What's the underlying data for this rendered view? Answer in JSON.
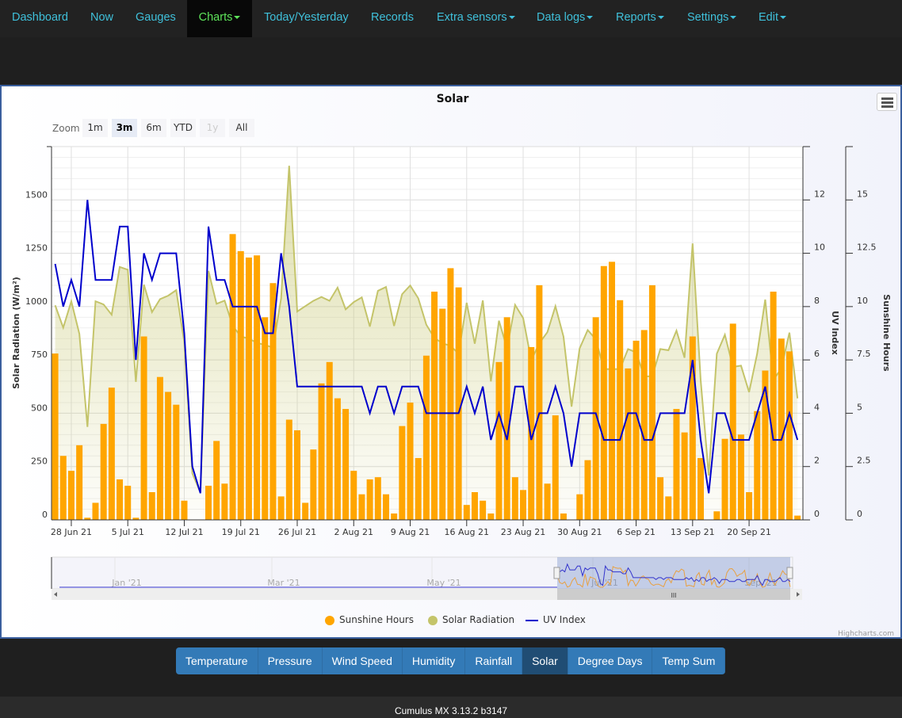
{
  "nav": {
    "items": [
      {
        "label": "Dashboard",
        "dropdown": false
      },
      {
        "label": "Now",
        "dropdown": false
      },
      {
        "label": "Gauges",
        "dropdown": false
      },
      {
        "label": "Charts",
        "dropdown": true,
        "active": true
      },
      {
        "label": "Today/Yesterday",
        "dropdown": false
      },
      {
        "label": "Records",
        "dropdown": false
      },
      {
        "label": "Extra sensors",
        "dropdown": true
      },
      {
        "label": "Data logs",
        "dropdown": true
      },
      {
        "label": "Reports",
        "dropdown": true
      },
      {
        "label": "Settings",
        "dropdown": true
      },
      {
        "label": "Edit",
        "dropdown": true
      }
    ]
  },
  "chart": {
    "title": "Solar",
    "menu_icon": "hamburger-menu-icon",
    "range_selector": {
      "label": "Zoom",
      "buttons": [
        {
          "label": "1m",
          "state": "normal"
        },
        {
          "label": "3m",
          "state": "selected"
        },
        {
          "label": "6m",
          "state": "normal"
        },
        {
          "label": "YTD",
          "state": "normal"
        },
        {
          "label": "1y",
          "state": "disabled"
        },
        {
          "label": "All",
          "state": "normal"
        }
      ]
    },
    "navigator": {
      "labels": [
        "Jan '21",
        "Mar '21",
        "May '21",
        "Jul '21",
        "Sep '21"
      ]
    },
    "credits": "Highcharts.com"
  },
  "chart_data": {
    "type": "bar+area+line",
    "title": "Solar",
    "x": [
      "2021-06-26",
      "2021-06-27",
      "2021-06-28",
      "2021-06-29",
      "2021-06-30",
      "2021-07-01",
      "2021-07-02",
      "2021-07-03",
      "2021-07-04",
      "2021-07-05",
      "2021-07-06",
      "2021-07-07",
      "2021-07-08",
      "2021-07-09",
      "2021-07-10",
      "2021-07-11",
      "2021-07-12",
      "2021-07-13",
      "2021-07-14",
      "2021-07-15",
      "2021-07-16",
      "2021-07-17",
      "2021-07-18",
      "2021-07-19",
      "2021-07-20",
      "2021-07-21",
      "2021-07-22",
      "2021-07-23",
      "2021-07-24",
      "2021-07-25",
      "2021-07-26",
      "2021-07-27",
      "2021-07-28",
      "2021-07-29",
      "2021-07-30",
      "2021-07-31",
      "2021-08-01",
      "2021-08-02",
      "2021-08-03",
      "2021-08-04",
      "2021-08-05",
      "2021-08-06",
      "2021-08-07",
      "2021-08-08",
      "2021-08-09",
      "2021-08-10",
      "2021-08-11",
      "2021-08-12",
      "2021-08-13",
      "2021-08-14",
      "2021-08-15",
      "2021-08-16",
      "2021-08-17",
      "2021-08-18",
      "2021-08-19",
      "2021-08-20",
      "2021-08-21",
      "2021-08-22",
      "2021-08-23",
      "2021-08-24",
      "2021-08-25",
      "2021-08-26",
      "2021-08-27",
      "2021-08-28",
      "2021-08-29",
      "2021-08-30",
      "2021-08-31",
      "2021-09-01",
      "2021-09-02",
      "2021-09-03",
      "2021-09-04",
      "2021-09-05",
      "2021-09-06",
      "2021-09-07",
      "2021-09-08",
      "2021-09-09",
      "2021-09-10",
      "2021-09-11",
      "2021-09-12",
      "2021-09-13",
      "2021-09-14",
      "2021-09-15",
      "2021-09-16",
      "2021-09-17",
      "2021-09-18",
      "2021-09-19",
      "2021-09-20",
      "2021-09-21",
      "2021-09-22",
      "2021-09-23",
      "2021-09-24",
      "2021-09-25",
      "2021-09-26"
    ],
    "x_ticks": [
      "28 Jun 21",
      "5 Jul 21",
      "12 Jul 21",
      "19 Jul 21",
      "26 Jul 21",
      "2 Aug 21",
      "9 Aug 21",
      "16 Aug 21",
      "23 Aug 21",
      "30 Aug 21",
      "6 Sep 21",
      "13 Sep 21",
      "20 Sep 21"
    ],
    "x_tick_dates": [
      "2021-06-28",
      "2021-07-05",
      "2021-07-12",
      "2021-07-19",
      "2021-07-26",
      "2021-08-02",
      "2021-08-09",
      "2021-08-16",
      "2021-08-23",
      "2021-08-30",
      "2021-09-06",
      "2021-09-13",
      "2021-09-20"
    ],
    "axes": {
      "radiation": {
        "label": "Solar Radiation (W/m²)",
        "position": "left",
        "range": [
          0,
          1750
        ],
        "ticks": [
          "0",
          "250",
          "500",
          "750",
          "1000",
          "1250",
          "1500"
        ]
      },
      "uv": {
        "label": "UV Index",
        "position": "right",
        "range": [
          0,
          14
        ],
        "ticks": [
          "0",
          "2",
          "4",
          "6",
          "8",
          "10",
          "12"
        ]
      },
      "sunshine": {
        "label": "Sunshine Hours",
        "position": "right",
        "range": [
          0,
          17.5
        ],
        "ticks": [
          "0",
          "2.5",
          "5",
          "7.5",
          "10",
          "12.5",
          "15"
        ]
      }
    },
    "grid": true,
    "legend_placement": "bottom",
    "series": [
      {
        "name": "Sunshine Hours",
        "type": "column",
        "axis": "sunshine",
        "color": "#ffa500",
        "values": [
          7.8,
          3.0,
          2.3,
          3.5,
          0.1,
          0.8,
          4.5,
          6.2,
          1.9,
          1.6,
          0.1,
          8.6,
          1.3,
          6.7,
          6.0,
          5.4,
          0.9,
          0,
          0,
          1.6,
          3.7,
          1.7,
          13.4,
          12.6,
          12.3,
          12.4,
          9.5,
          11.1,
          1.1,
          4.7,
          4.2,
          0.8,
          3.3,
          6.4,
          7.4,
          5.7,
          5.2,
          2.3,
          1.2,
          1.9,
          2.0,
          1.2,
          0.3,
          4.4,
          5.5,
          2.9,
          7.7,
          10.7,
          9.9,
          11.8,
          10.9,
          0.7,
          1.3,
          0.9,
          0.3,
          7.4,
          9.5,
          2.0,
          1.4,
          8.1,
          11.0,
          1.7,
          4.9,
          0.3,
          0,
          1.2,
          2.8,
          9.5,
          11.9,
          12.1,
          10.3,
          7.1,
          8.4,
          8.9,
          11.0,
          2.0,
          1.1,
          5.2,
          4.1,
          8.6,
          2.9,
          0,
          0.4,
          3.8,
          9.2,
          4.0,
          1.3,
          5.1,
          7.0,
          10.7,
          8.5,
          7.9,
          0.2
        ]
      },
      {
        "name": "Solar Radiation",
        "type": "area",
        "axis": "radiation",
        "color": "#c4c46a",
        "values": [
          1006,
          901,
          1025,
          872,
          436,
          1025,
          1010,
          962,
          1186,
          1173,
          647,
          1103,
          974,
          1035,
          1051,
          1077,
          833,
          218,
          128,
          1167,
          1013,
          1028,
          910,
          860,
          850,
          830,
          820,
          808,
          1038,
          1660,
          977,
          1002,
          1027,
          1045,
          1027,
          1089,
          987,
          1021,
          1043,
          906,
          1074,
          1092,
          909,
          1058,
          1099,
          1039,
          915,
          853,
          828,
          816,
          779,
          1018,
          826,
          1029,
          649,
          934,
          804,
          1008,
          946,
          748,
          828,
          880,
          1002,
          859,
          531,
          804,
          890,
          847,
          707,
          707,
          707,
          801,
          785,
          673,
          673,
          801,
          795,
          887,
          760,
          1296,
          655,
          208,
          779,
          868,
          717,
          723,
          599,
          779,
          1033,
          655,
          711,
          878,
          570
        ]
      },
      {
        "name": "UV Index",
        "type": "line",
        "axis": "uv",
        "color": "#0000cc",
        "values": [
          9.6,
          8,
          9,
          8,
          12,
          9,
          9,
          9,
          11,
          11,
          6,
          10,
          9,
          10,
          10,
          10,
          7,
          2,
          1,
          11,
          9,
          9,
          8,
          8,
          8,
          8,
          7,
          7,
          10,
          8,
          5,
          5,
          5,
          5,
          5,
          5,
          5,
          5,
          5,
          4,
          5,
          5,
          4,
          5,
          5,
          5,
          4,
          4,
          4,
          4,
          4,
          5,
          4,
          5,
          3,
          4,
          3,
          5,
          5,
          3,
          4,
          4,
          5,
          4,
          2,
          4,
          4,
          4,
          3,
          3,
          3,
          4,
          4,
          3,
          3,
          4,
          4,
          4,
          4,
          6,
          3,
          1,
          4,
          4,
          3,
          3,
          3,
          4,
          5,
          3,
          3,
          4,
          3
        ]
      }
    ]
  },
  "chart_tabs": [
    {
      "label": "Temperature"
    },
    {
      "label": "Pressure"
    },
    {
      "label": "Wind Speed"
    },
    {
      "label": "Humidity"
    },
    {
      "label": "Rainfall"
    },
    {
      "label": "Solar",
      "active": true
    },
    {
      "label": "Degree Days"
    },
    {
      "label": "Temp Sum"
    }
  ],
  "footer": {
    "text": "Cumulus MX 3.13.2 b3147"
  }
}
